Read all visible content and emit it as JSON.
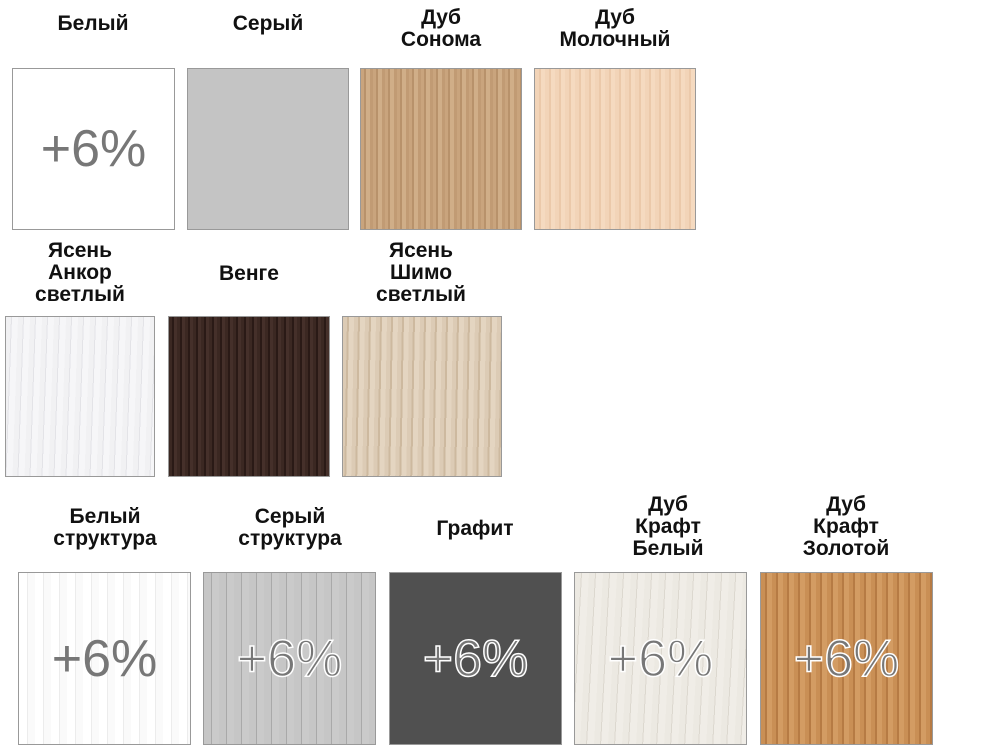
{
  "swatches": [
    {
      "label": [
        "Белый"
      ],
      "badge": "+6%",
      "color": "#ffffff"
    },
    {
      "label": [
        "Серый"
      ],
      "badge": "",
      "color": "#c4c4c4"
    },
    {
      "label": [
        "Дуб",
        "Сонома"
      ],
      "badge": "",
      "color": "#c9a47d"
    },
    {
      "label": [
        "Дуб",
        "Молочный"
      ],
      "badge": "",
      "color": "#f2d4b8"
    },
    {
      "label": [
        "Ясень",
        "Анкор",
        "светлый"
      ],
      "badge": "",
      "color": "#f1f1f3"
    },
    {
      "label": [
        "Венге"
      ],
      "badge": "",
      "color": "#3b2822"
    },
    {
      "label": [
        "Ясень",
        "Шимо",
        "светлый"
      ],
      "badge": "",
      "color": "#dccbb5"
    },
    {
      "label": [
        "Белый",
        "структура"
      ],
      "badge": "+6%",
      "color": "#ffffff"
    },
    {
      "label": [
        "Серый",
        "структура"
      ],
      "badge": "+6%",
      "color": "#c6c6c6"
    },
    {
      "label": [
        "Графит"
      ],
      "badge": "+6%",
      "color": "#505050"
    },
    {
      "label": [
        "Дуб",
        "Крафт",
        "Белый"
      ],
      "badge": "+6%",
      "color": "#ece9e2"
    },
    {
      "label": [
        "Дуб",
        "Крафт",
        "Золотой"
      ],
      "badge": "+6%",
      "color": "#c98f55"
    }
  ]
}
